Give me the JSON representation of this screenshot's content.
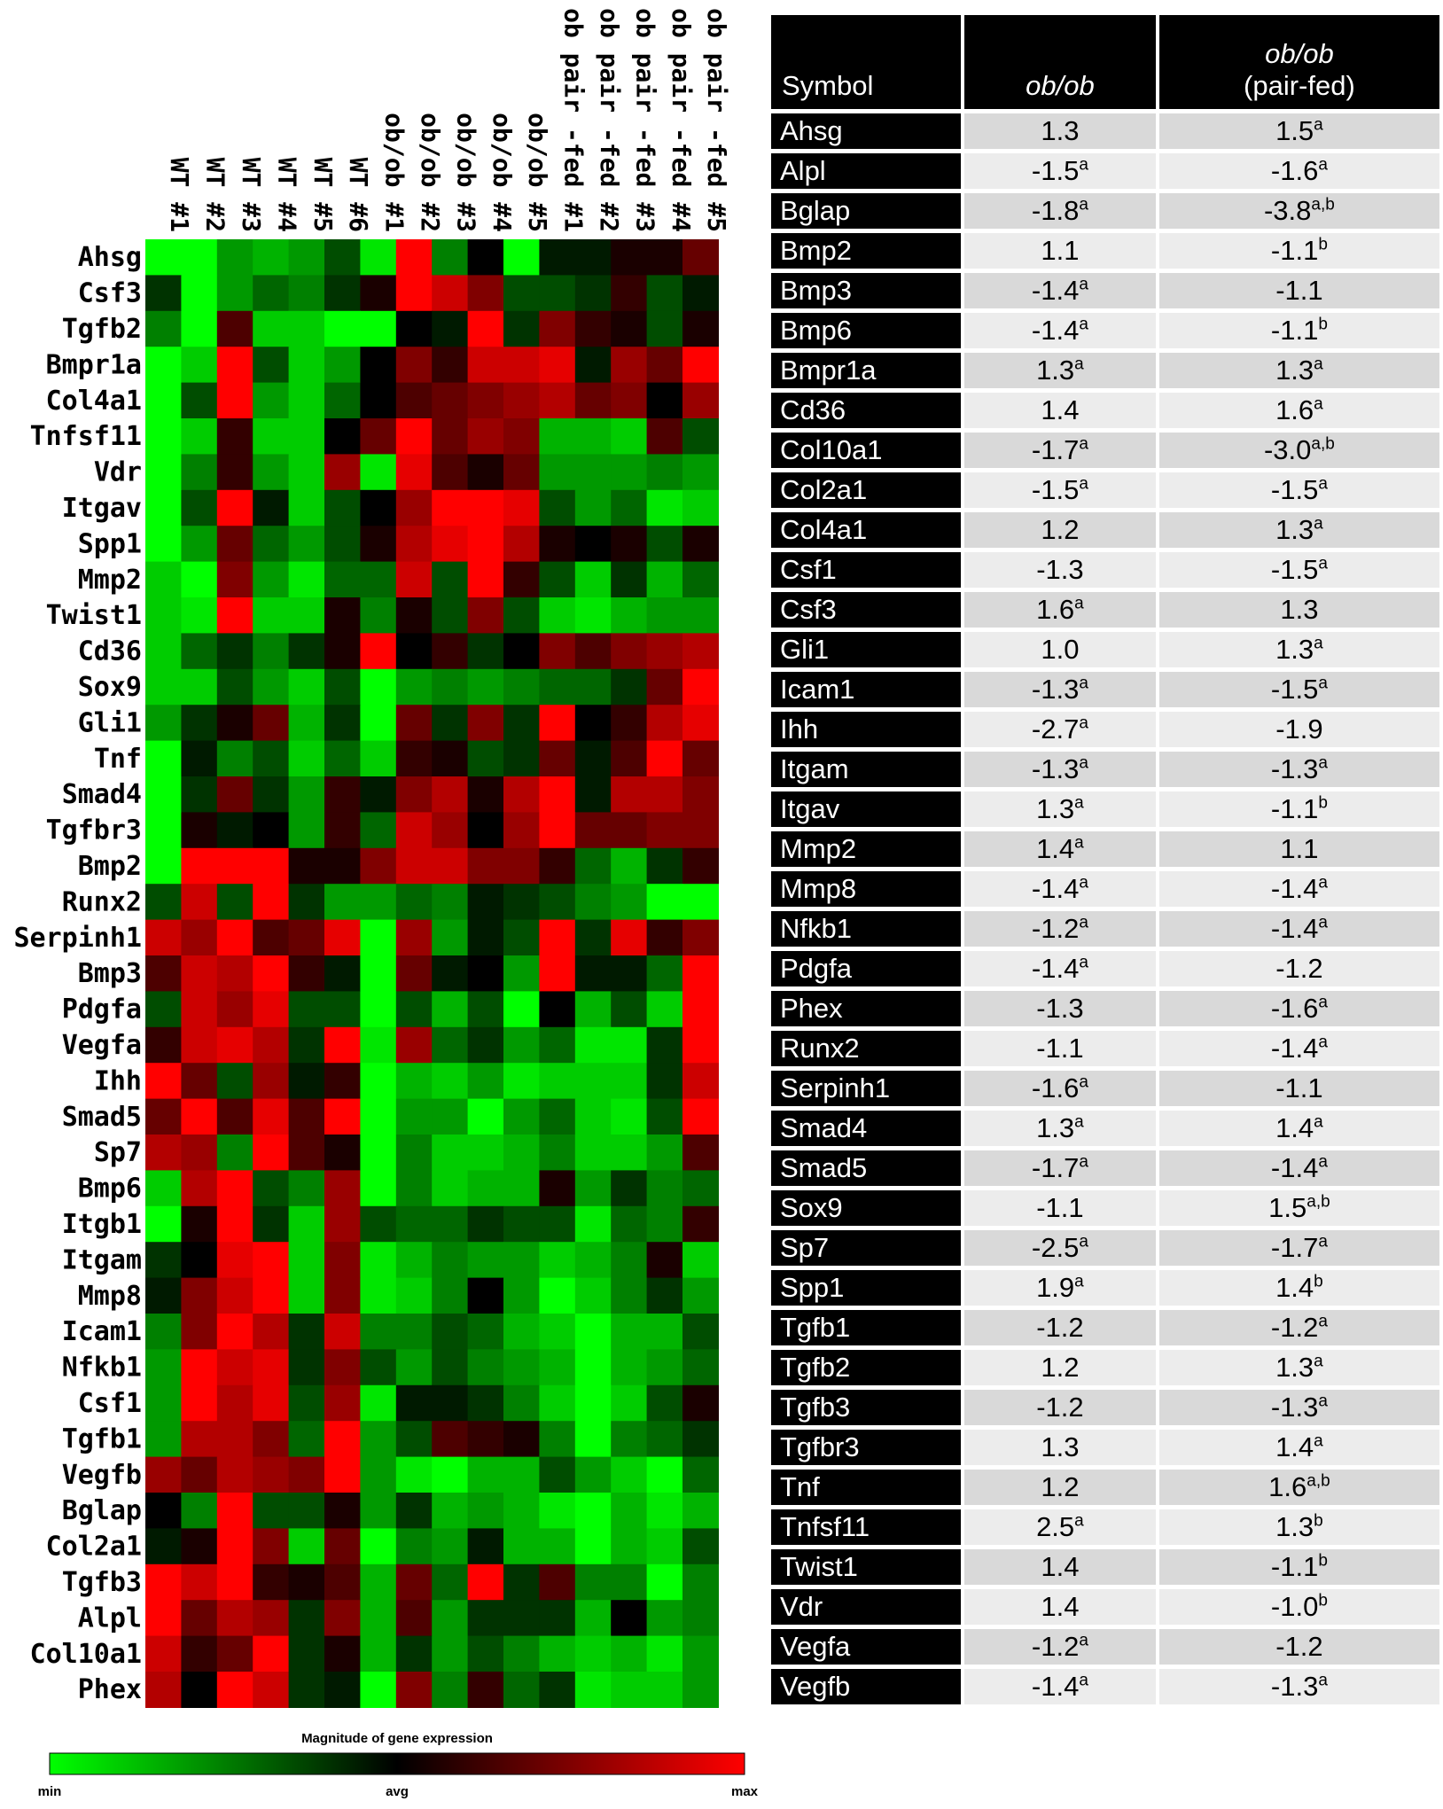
{
  "chart_data": {
    "type": "heatmap",
    "columns": [
      "WT #1",
      "WT #2",
      "WT #3",
      "WT #4",
      "WT #5",
      "WT #6",
      "ob/ob #1",
      "ob/ob #2",
      "ob/ob #3",
      "ob/ob #4",
      "ob/ob #5",
      "ob pair -fed #1",
      "ob pair -fed #2",
      "ob pair -fed #3",
      "ob pair -fed #4",
      "ob pair -fed #5"
    ],
    "rows": [
      "Ahsg",
      "Csf3",
      "Tgfb2",
      "Bmpr1a",
      "Col4a1",
      "Tnfsf11",
      "Vdr",
      "Itgav",
      "Spp1",
      "Mmp2",
      "Twist1",
      "Cd36",
      "Sox9",
      "Gli1",
      "Tnf",
      "Smad4",
      "Tgfbr3",
      "Bmp2",
      "Runx2",
      "Serpinh1",
      "Bmp3",
      "Pdgfa",
      "Vegfa",
      "Ihh",
      "Smad5",
      "Sp7",
      "Bmp6",
      "Itgb1",
      "Itgam",
      "Mmp8",
      "Icam1",
      "Nfkb1",
      "Csf1",
      "Tgfb1",
      "Vegfb",
      "Bglap",
      "Col2a1",
      "Tgfb3",
      "Alpl",
      "Col10a1",
      "Phex"
    ],
    "values": [
      [
        -1.0,
        -1.0,
        -0.6,
        -0.7,
        -0.6,
        -0.3,
        -0.9,
        1.0,
        -0.5,
        0.0,
        -1.0,
        -0.1,
        -0.1,
        0.1,
        0.1,
        0.4
      ],
      [
        -0.2,
        -1.0,
        -0.6,
        -0.4,
        -0.5,
        -0.2,
        0.1,
        1.0,
        0.8,
        0.5,
        -0.3,
        -0.3,
        -0.2,
        0.2,
        -0.3,
        -0.1
      ],
      [
        -0.5,
        -1.0,
        0.3,
        -0.8,
        -0.8,
        -1.0,
        -1.0,
        0.0,
        -0.1,
        1.0,
        -0.2,
        0.5,
        0.2,
        0.1,
        -0.3,
        0.1
      ],
      [
        -1.0,
        -0.8,
        1.0,
        -0.3,
        -0.8,
        -0.6,
        0.0,
        0.5,
        0.2,
        0.8,
        0.8,
        0.9,
        -0.1,
        0.6,
        0.4,
        1.0
      ],
      [
        -1.0,
        -0.3,
        1.0,
        -0.6,
        -0.8,
        -0.4,
        0.0,
        0.3,
        0.4,
        0.5,
        0.6,
        0.7,
        0.4,
        0.5,
        0.0,
        0.6
      ],
      [
        -1.0,
        -0.8,
        0.2,
        -0.8,
        -0.8,
        0.0,
        0.4,
        1.0,
        0.4,
        0.6,
        0.5,
        -0.7,
        -0.7,
        -0.8,
        0.3,
        -0.3
      ],
      [
        -1.0,
        -0.5,
        0.2,
        -0.6,
        -0.8,
        0.6,
        -0.9,
        0.9,
        0.3,
        0.1,
        0.4,
        -0.6,
        -0.6,
        -0.6,
        -0.5,
        -0.6
      ],
      [
        -1.0,
        -0.3,
        1.0,
        -0.1,
        -0.8,
        -0.3,
        0.0,
        0.6,
        1.0,
        1.0,
        0.9,
        -0.3,
        -0.6,
        -0.4,
        -0.9,
        -0.8
      ],
      [
        -1.0,
        -0.6,
        0.4,
        -0.4,
        -0.6,
        -0.3,
        0.1,
        0.7,
        0.9,
        1.0,
        0.7,
        0.1,
        0.0,
        0.1,
        -0.3,
        0.1
      ],
      [
        -0.8,
        -1.0,
        0.5,
        -0.6,
        -0.9,
        -0.4,
        -0.4,
        0.8,
        -0.3,
        1.0,
        0.2,
        -0.3,
        -0.8,
        -0.2,
        -0.7,
        -0.4
      ],
      [
        -0.8,
        -0.9,
        1.0,
        -0.8,
        -0.8,
        0.1,
        -0.5,
        0.1,
        -0.3,
        0.5,
        -0.3,
        -0.8,
        -0.9,
        -0.7,
        -0.6,
        -0.6
      ],
      [
        -0.8,
        -0.4,
        -0.2,
        -0.5,
        -0.2,
        0.1,
        1.0,
        0.0,
        0.2,
        -0.2,
        0.0,
        0.5,
        0.3,
        0.5,
        0.6,
        0.7
      ],
      [
        -0.8,
        -0.8,
        -0.3,
        -0.6,
        -0.8,
        -0.3,
        -1.0,
        -0.6,
        -0.5,
        -0.6,
        -0.5,
        -0.4,
        -0.4,
        -0.2,
        0.4,
        1.0
      ],
      [
        -0.6,
        -0.2,
        0.1,
        0.4,
        -0.7,
        -0.2,
        -1.0,
        0.4,
        -0.2,
        0.5,
        -0.2,
        1.0,
        0.0,
        0.2,
        0.7,
        0.9
      ],
      [
        -1.0,
        -0.1,
        -0.5,
        -0.3,
        -0.8,
        -0.4,
        -0.8,
        0.2,
        0.1,
        -0.3,
        -0.2,
        0.4,
        -0.1,
        0.3,
        1.0,
        0.4
      ],
      [
        -1.0,
        -0.2,
        0.4,
        -0.2,
        -0.6,
        0.2,
        -0.1,
        0.5,
        0.7,
        0.1,
        0.7,
        1.0,
        -0.1,
        0.7,
        0.7,
        0.5
      ],
      [
        -1.0,
        0.1,
        -0.1,
        0.0,
        -0.6,
        0.2,
        -0.4,
        0.8,
        0.6,
        0.0,
        0.6,
        1.0,
        0.4,
        0.4,
        0.5,
        0.5
      ],
      [
        -1.0,
        1.0,
        1.0,
        1.0,
        0.1,
        0.1,
        0.5,
        0.8,
        0.8,
        0.5,
        0.5,
        0.2,
        -0.4,
        -0.7,
        -0.2,
        0.2
      ],
      [
        -0.3,
        0.8,
        -0.3,
        1.0,
        -0.2,
        -0.6,
        -0.6,
        -0.4,
        -0.5,
        -0.1,
        -0.2,
        -0.3,
        -0.5,
        -0.6,
        -1.0,
        -1.0
      ],
      [
        0.8,
        0.6,
        1.0,
        0.3,
        0.4,
        0.9,
        -1.0,
        0.6,
        -0.6,
        -0.1,
        -0.3,
        1.0,
        -0.2,
        0.9,
        0.2,
        0.5
      ],
      [
        0.3,
        0.8,
        0.7,
        1.0,
        0.2,
        -0.1,
        -1.0,
        0.4,
        -0.1,
        0.0,
        -0.6,
        1.0,
        -0.1,
        -0.1,
        -0.4,
        1.0
      ],
      [
        -0.3,
        0.8,
        0.6,
        0.9,
        -0.3,
        -0.3,
        -1.0,
        -0.3,
        -0.7,
        -0.3,
        -1.0,
        0.0,
        -0.7,
        -0.3,
        -0.8,
        1.0
      ],
      [
        0.2,
        0.8,
        0.9,
        0.7,
        -0.2,
        1.0,
        -0.9,
        0.6,
        -0.4,
        -0.2,
        -0.6,
        -0.4,
        -0.9,
        -0.9,
        -0.2,
        1.0
      ],
      [
        1.0,
        0.4,
        -0.3,
        0.6,
        -0.1,
        0.2,
        -1.0,
        -0.7,
        -0.8,
        -0.6,
        -0.9,
        -0.8,
        -0.8,
        -0.8,
        -0.2,
        0.8
      ],
      [
        0.4,
        1.0,
        0.3,
        0.9,
        0.3,
        1.0,
        -1.0,
        -0.6,
        -0.6,
        -1.0,
        -0.6,
        -0.4,
        -0.8,
        -0.9,
        -0.3,
        1.0
      ],
      [
        0.7,
        0.6,
        -0.5,
        1.0,
        0.3,
        0.1,
        -1.0,
        -0.5,
        -0.8,
        -0.8,
        -0.7,
        -0.5,
        -0.8,
        -0.8,
        -0.6,
        0.3
      ],
      [
        -0.8,
        0.7,
        1.0,
        -0.3,
        -0.5,
        0.6,
        -1.0,
        -0.5,
        -0.8,
        -0.7,
        -0.7,
        0.1,
        -0.6,
        -0.2,
        -0.5,
        -0.4
      ],
      [
        -1.0,
        0.1,
        1.0,
        -0.2,
        -0.8,
        0.6,
        -0.3,
        -0.4,
        -0.4,
        -0.2,
        -0.3,
        -0.3,
        -0.9,
        -0.4,
        -0.5,
        0.2
      ],
      [
        -0.2,
        0.0,
        0.9,
        1.0,
        -0.8,
        0.5,
        -0.9,
        -0.7,
        -0.5,
        -0.6,
        -0.6,
        -0.8,
        -0.7,
        -0.5,
        0.1,
        -0.8
      ],
      [
        -0.1,
        0.5,
        0.8,
        1.0,
        -0.8,
        0.5,
        -0.9,
        -0.8,
        -0.5,
        0.0,
        -0.6,
        -1.0,
        -0.8,
        -0.5,
        -0.2,
        -0.6
      ],
      [
        -0.5,
        0.5,
        1.0,
        0.7,
        -0.2,
        0.8,
        -0.5,
        -0.5,
        -0.3,
        -0.4,
        -0.7,
        -0.8,
        -1.0,
        -0.7,
        -0.7,
        -0.3
      ],
      [
        -0.6,
        1.0,
        0.8,
        0.9,
        -0.2,
        0.5,
        -0.3,
        -0.6,
        -0.3,
        -0.5,
        -0.6,
        -0.7,
        -1.0,
        -0.7,
        -0.6,
        -0.4
      ],
      [
        -0.6,
        1.0,
        0.7,
        0.9,
        -0.3,
        0.6,
        -0.9,
        -0.1,
        -0.1,
        -0.2,
        -0.5,
        -0.8,
        -1.0,
        -0.8,
        -0.3,
        0.1
      ],
      [
        -0.6,
        0.7,
        0.7,
        0.5,
        -0.4,
        1.0,
        -0.6,
        -0.3,
        0.3,
        0.2,
        0.1,
        -0.5,
        -1.0,
        -0.5,
        -0.4,
        -0.2
      ],
      [
        0.6,
        0.4,
        0.7,
        0.6,
        0.5,
        1.0,
        -0.6,
        -0.9,
        -1.0,
        -0.7,
        -0.7,
        -0.3,
        -0.6,
        -0.8,
        -1.0,
        -0.4
      ],
      [
        0.0,
        -0.5,
        1.0,
        -0.3,
        -0.3,
        0.1,
        -0.6,
        -0.2,
        -0.7,
        -0.6,
        -0.7,
        -0.9,
        -1.0,
        -0.7,
        -0.9,
        -0.7
      ],
      [
        -0.1,
        0.1,
        1.0,
        0.5,
        -0.8,
        0.4,
        -1.0,
        -0.5,
        -0.6,
        -0.1,
        -0.7,
        -0.7,
        -1.0,
        -0.7,
        -0.8,
        -0.3
      ],
      [
        1.0,
        0.8,
        1.0,
        0.2,
        0.1,
        0.3,
        -0.7,
        0.4,
        -0.4,
        1.0,
        -0.2,
        0.3,
        -0.5,
        -0.5,
        -1.0,
        -0.5
      ],
      [
        1.0,
        0.4,
        0.7,
        0.6,
        -0.2,
        0.5,
        -0.7,
        0.3,
        -0.6,
        -0.2,
        -0.2,
        -0.2,
        -0.7,
        0.0,
        -0.6,
        -0.5
      ],
      [
        0.8,
        0.2,
        0.4,
        1.0,
        -0.2,
        0.1,
        -0.7,
        -0.2,
        -0.6,
        -0.3,
        -0.5,
        -0.7,
        -0.8,
        -0.7,
        -0.9,
        -0.6
      ],
      [
        0.7,
        0.0,
        1.0,
        0.8,
        -0.2,
        -0.1,
        -1.0,
        0.5,
        -0.5,
        0.2,
        -0.4,
        -0.2,
        -0.9,
        -0.8,
        -0.8,
        -0.6
      ]
    ],
    "color_scale": {
      "min_color": "#00ff00",
      "mid_color": "#000000",
      "max_color": "#ff0000"
    },
    "legend": {
      "title": "Magnitude of gene expression",
      "min_label": "min",
      "mid_label": "avg",
      "max_label": "max"
    }
  },
  "table": {
    "headers": {
      "symbol": "Symbol",
      "col1": "ob/ob",
      "col2_line1": "ob/ob",
      "col2_line2": "(pair-fed)"
    },
    "rows": [
      {
        "symbol": "Ahsg",
        "v1": "1.3",
        "s1": "",
        "v2": "1.5",
        "s2": "a"
      },
      {
        "symbol": "Alpl",
        "v1": "-1.5",
        "s1": "a",
        "v2": "-1.6",
        "s2": "a"
      },
      {
        "symbol": "Bglap",
        "v1": "-1.8",
        "s1": "a",
        "v2": "-3.8",
        "s2": "a,b"
      },
      {
        "symbol": "Bmp2",
        "v1": "1.1",
        "s1": "",
        "v2": "-1.1",
        "s2": "b"
      },
      {
        "symbol": "Bmp3",
        "v1": "-1.4",
        "s1": "a",
        "v2": "-1.1",
        "s2": ""
      },
      {
        "symbol": "Bmp6",
        "v1": "-1.4",
        "s1": "a",
        "v2": "-1.1",
        "s2": "b"
      },
      {
        "symbol": "Bmpr1a",
        "v1": "1.3",
        "s1": "a",
        "v2": "1.3",
        "s2": "a"
      },
      {
        "symbol": "Cd36",
        "v1": "1.4",
        "s1": "",
        "v2": "1.6",
        "s2": "a"
      },
      {
        "symbol": "Col10a1",
        "v1": "-1.7",
        "s1": "a",
        "v2": "-3.0",
        "s2": "a,b"
      },
      {
        "symbol": "Col2a1",
        "v1": "-1.5",
        "s1": "a",
        "v2": "-1.5",
        "s2": "a"
      },
      {
        "symbol": "Col4a1",
        "v1": "1.2",
        "s1": "",
        "v2": "1.3",
        "s2": "a"
      },
      {
        "symbol": "Csf1",
        "v1": "-1.3",
        "s1": "",
        "v2": "-1.5",
        "s2": "a"
      },
      {
        "symbol": "Csf3",
        "v1": "1.6",
        "s1": "a",
        "v2": "1.3",
        "s2": ""
      },
      {
        "symbol": "Gli1",
        "v1": "1.0",
        "s1": "",
        "v2": "1.3",
        "s2": "a"
      },
      {
        "symbol": "Icam1",
        "v1": "-1.3",
        "s1": "a",
        "v2": "-1.5",
        "s2": "a"
      },
      {
        "symbol": "Ihh",
        "v1": "-2.7",
        "s1": "a",
        "v2": "-1.9",
        "s2": ""
      },
      {
        "symbol": "Itgam",
        "v1": "-1.3",
        "s1": "a",
        "v2": "-1.3",
        "s2": "a"
      },
      {
        "symbol": "Itgav",
        "v1": "1.3",
        "s1": "a",
        "v2": "-1.1",
        "s2": "b"
      },
      {
        "symbol": "Mmp2",
        "v1": "1.4",
        "s1": "a",
        "v2": "1.1",
        "s2": ""
      },
      {
        "symbol": "Mmp8",
        "v1": "-1.4",
        "s1": "a",
        "v2": "-1.4",
        "s2": "a"
      },
      {
        "symbol": "Nfkb1",
        "v1": "-1.2",
        "s1": "a",
        "v2": "-1.4",
        "s2": "a"
      },
      {
        "symbol": "Pdgfa",
        "v1": "-1.4",
        "s1": "a",
        "v2": "-1.2",
        "s2": ""
      },
      {
        "symbol": "Phex",
        "v1": "-1.3",
        "s1": "",
        "v2": "-1.6",
        "s2": "a"
      },
      {
        "symbol": "Runx2",
        "v1": "-1.1",
        "s1": "",
        "v2": "-1.4",
        "s2": "a"
      },
      {
        "symbol": "Serpinh1",
        "v1": "-1.6",
        "s1": "a",
        "v2": "-1.1",
        "s2": ""
      },
      {
        "symbol": "Smad4",
        "v1": "1.3",
        "s1": "a",
        "v2": "1.4",
        "s2": "a"
      },
      {
        "symbol": "Smad5",
        "v1": "-1.7",
        "s1": "a",
        "v2": "-1.4",
        "s2": "a"
      },
      {
        "symbol": "Sox9",
        "v1": "-1.1",
        "s1": "",
        "v2": "1.5",
        "s2": "a,b"
      },
      {
        "symbol": "Sp7",
        "v1": "-2.5",
        "s1": "a",
        "v2": "-1.7",
        "s2": "a"
      },
      {
        "symbol": "Spp1",
        "v1": "1.9",
        "s1": "a",
        "v2": "1.4",
        "s2": "b"
      },
      {
        "symbol": "Tgfb1",
        "v1": "-1.2",
        "s1": "",
        "v2": "-1.2",
        "s2": "a"
      },
      {
        "symbol": "Tgfb2",
        "v1": "1.2",
        "s1": "",
        "v2": "1.3",
        "s2": "a"
      },
      {
        "symbol": "Tgfb3",
        "v1": "-1.2",
        "s1": "",
        "v2": "-1.3",
        "s2": "a"
      },
      {
        "symbol": "Tgfbr3",
        "v1": "1.3",
        "s1": "",
        "v2": "1.4",
        "s2": "a"
      },
      {
        "symbol": "Tnf",
        "v1": "1.2",
        "s1": "",
        "v2": "1.6",
        "s2": "a,b"
      },
      {
        "symbol": "Tnfsf11",
        "v1": "2.5",
        "s1": "a",
        "v2": "1.3",
        "s2": "b"
      },
      {
        "symbol": "Twist1",
        "v1": "1.4",
        "s1": "",
        "v2": "-1.1",
        "s2": "b"
      },
      {
        "symbol": "Vdr",
        "v1": "1.4",
        "s1": "",
        "v2": "-1.0",
        "s2": "b"
      },
      {
        "symbol": "Vegfa",
        "v1": "-1.2",
        "s1": "a",
        "v2": "-1.2",
        "s2": ""
      },
      {
        "symbol": "Vegfb",
        "v1": "-1.4",
        "s1": "a",
        "v2": "-1.3",
        "s2": "a"
      }
    ]
  }
}
